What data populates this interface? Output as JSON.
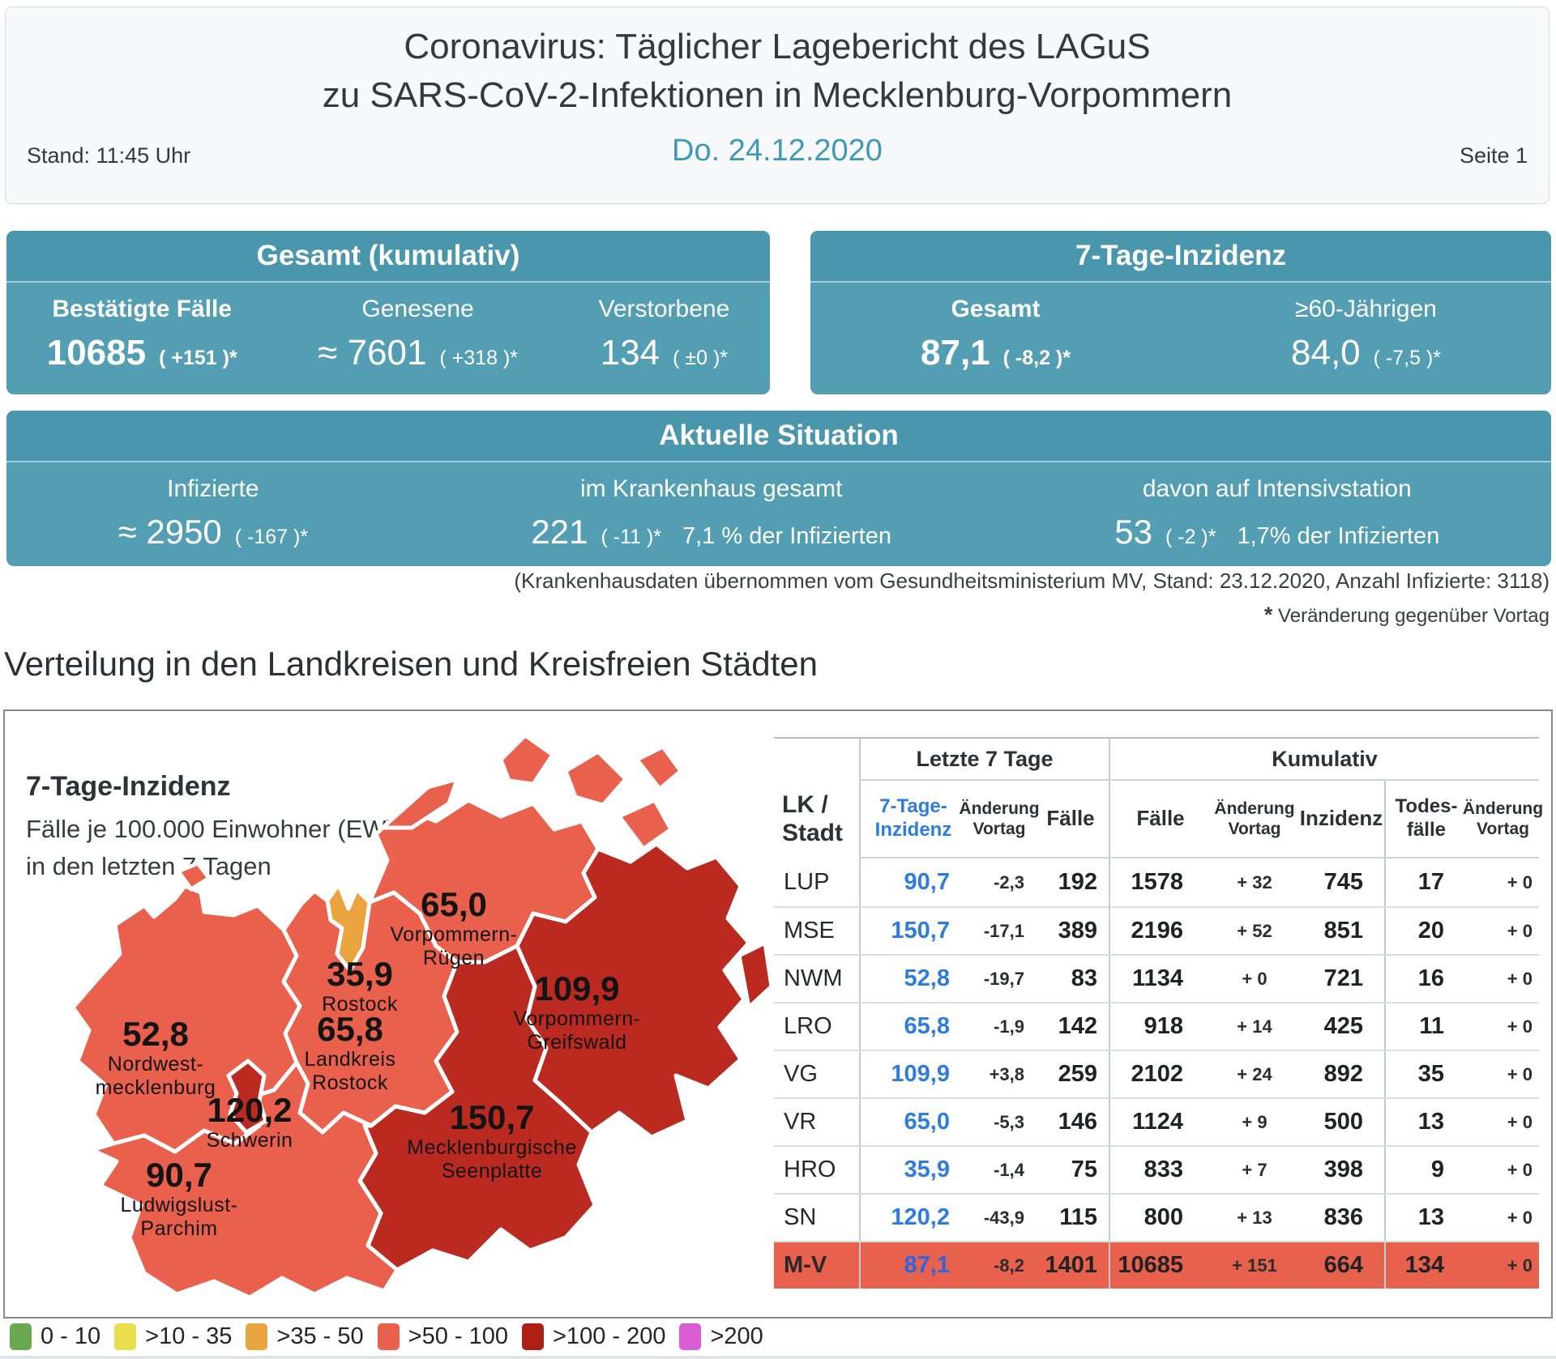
{
  "header": {
    "title_line1": "Coronavirus: Täglicher Lagebericht des LAGuS",
    "title_line2": "zu SARS-CoV-2-Infektionen in Mecklenburg-Vorpommern",
    "date": "Do. 24.12.2020",
    "stand": "Stand: 11:45 Uhr",
    "page": "Seite 1"
  },
  "cards": {
    "gesamt": {
      "title": "Gesamt (kumulativ)",
      "items": [
        {
          "label": "Bestätigte Fälle",
          "value": "10685",
          "change": "( +151 )*"
        },
        {
          "label": "Genesene",
          "value": "≈ 7601",
          "change": "( +318 )*"
        },
        {
          "label": "Verstorbene",
          "value": "134",
          "change": "( ±0 )*"
        }
      ]
    },
    "inzidenz7": {
      "title": "7-Tage-Inzidenz",
      "items": [
        {
          "label": "Gesamt",
          "value": "87,1",
          "change": "( -8,2 )*"
        },
        {
          "label": "≥60-Jährigen",
          "value": "84,0",
          "change": "( -7,5 )*"
        }
      ]
    },
    "aktuell": {
      "title": "Aktuelle Situation",
      "items": [
        {
          "label": "Infizierte",
          "value": "≈ 2950",
          "change": "( -167 )*",
          "share": ""
        },
        {
          "label": "im Krankenhaus gesamt",
          "value": "221",
          "change": "( -11 )*",
          "share": "7,1 % der Infizierten"
        },
        {
          "label": "davon auf Intensivstation",
          "value": "53",
          "change": "( -2 )*",
          "share": "1,7% der Infizierten"
        }
      ]
    }
  },
  "footnotes": {
    "hospital": "(Krankenhausdaten übernommen vom Gesundheitsministerium MV, Stand: 23.12.2020, Anzahl Infizierte: 3118)",
    "star": "*",
    "star_text": " Veränderung gegenüber Vortag"
  },
  "section_title": "Verteilung in den Landkreisen und Kreisfreien Städten",
  "map": {
    "title": "7-Tage-Inzidenz",
    "subtitle_line1": "Fälle je 100.000 Einwohner (EW)",
    "subtitle_line2": "in den letzten 7 Tagen",
    "regions": [
      {
        "id": "nwm",
        "value": "52,8",
        "name1": "Nordwest-",
        "name2": "mecklenburg",
        "color": "#e9604c"
      },
      {
        "id": "lup",
        "value": "90,7",
        "name1": "Ludwigslust-",
        "name2": "Parchim",
        "color": "#e9604c"
      },
      {
        "id": "sn",
        "value": "120,2",
        "name1": "Schwerin",
        "name2": "",
        "color": "#bb2a20"
      },
      {
        "id": "lro",
        "value": "65,8",
        "name1": "Landkreis",
        "name2": "Rostock",
        "color": "#e9604c"
      },
      {
        "id": "hro",
        "value": "35,9",
        "name1": "Rostock",
        "name2": "",
        "color": "#e9a43e"
      },
      {
        "id": "vr",
        "value": "65,0",
        "name1": "Vorpommern-",
        "name2": "Rügen",
        "color": "#e9604c"
      },
      {
        "id": "vg",
        "value": "109,9",
        "name1": "Vorpommern-",
        "name2": "Greifswald",
        "color": "#bb2a20"
      },
      {
        "id": "mse",
        "value": "150,7",
        "name1": "Mecklenburgische",
        "name2": "Seenplatte",
        "color": "#bb2a20"
      }
    ]
  },
  "table": {
    "corner": "LK /\nStadt",
    "groups": {
      "last7": "Letzte 7 Tage",
      "cumulative": "Kumulativ"
    },
    "subheaders": {
      "inz7": "7-Tage-\nInzidenz",
      "chg7": "Änderung\nVortag",
      "cases7": "Fälle",
      "cases": "Fälle",
      "chg": "Änderung\nVortag",
      "inc": "Inzidenz",
      "deaths": "Todes-\nfälle",
      "chgD": "Änderung\nVortag"
    },
    "rows": [
      {
        "lk": "LUP",
        "inz7": "90,7",
        "chg7": "-2,3",
        "cases7": "192",
        "cases": "1578",
        "chg": "+ 32",
        "inc": "745",
        "deaths": "17",
        "chgD": "+ 0",
        "highlight": false
      },
      {
        "lk": "MSE",
        "inz7": "150,7",
        "chg7": "-17,1",
        "cases7": "389",
        "cases": "2196",
        "chg": "+ 52",
        "inc": "851",
        "deaths": "20",
        "chgD": "+ 0",
        "highlight": false
      },
      {
        "lk": "NWM",
        "inz7": "52,8",
        "chg7": "-19,7",
        "cases7": "83",
        "cases": "1134",
        "chg": "+ 0",
        "inc": "721",
        "deaths": "16",
        "chgD": "+ 0",
        "highlight": false
      },
      {
        "lk": "LRO",
        "inz7": "65,8",
        "chg7": "-1,9",
        "cases7": "142",
        "cases": "918",
        "chg": "+ 14",
        "inc": "425",
        "deaths": "11",
        "chgD": "+ 0",
        "highlight": false
      },
      {
        "lk": "VG",
        "inz7": "109,9",
        "chg7": "+3,8",
        "cases7": "259",
        "cases": "2102",
        "chg": "+ 24",
        "inc": "892",
        "deaths": "35",
        "chgD": "+ 0",
        "highlight": false
      },
      {
        "lk": "VR",
        "inz7": "65,0",
        "chg7": "-5,3",
        "cases7": "146",
        "cases": "1124",
        "chg": "+ 9",
        "inc": "500",
        "deaths": "13",
        "chgD": "+ 0",
        "highlight": false
      },
      {
        "lk": "HRO",
        "inz7": "35,9",
        "chg7": "-1,4",
        "cases7": "75",
        "cases": "833",
        "chg": "+ 7",
        "inc": "398",
        "deaths": "9",
        "chgD": "+ 0",
        "highlight": false
      },
      {
        "lk": "SN",
        "inz7": "120,2",
        "chg7": "-43,9",
        "cases7": "115",
        "cases": "800",
        "chg": "+ 13",
        "inc": "836",
        "deaths": "13",
        "chgD": "+ 0",
        "highlight": false
      },
      {
        "lk": "M-V",
        "inz7": "87,1",
        "chg7": "-8,2",
        "cases7": "1401",
        "cases": "10685",
        "chg": "+ 151",
        "inc": "664",
        "deaths": "134",
        "chgD": "+ 0",
        "highlight": true
      }
    ]
  },
  "legend": {
    "items": [
      {
        "label": "0 - 10",
        "color": "#6aa850"
      },
      {
        "label": ">10 - 35",
        "color": "#e9df4e"
      },
      {
        "label": ">35 - 50",
        "color": "#e9a43e"
      },
      {
        "label": ">50 - 100",
        "color": "#e9604c"
      },
      {
        "label": ">100 - 200",
        "color": "#b01f16"
      },
      {
        "label": ">200",
        "color": "#d95ed3"
      }
    ]
  },
  "colors": {
    "teal_header": "#4a96ac",
    "teal_body": "#539eb3",
    "date_teal": "#3d9ab6",
    "table_blue": "#2e7cdf",
    "highlight_row": "#e8614d"
  }
}
